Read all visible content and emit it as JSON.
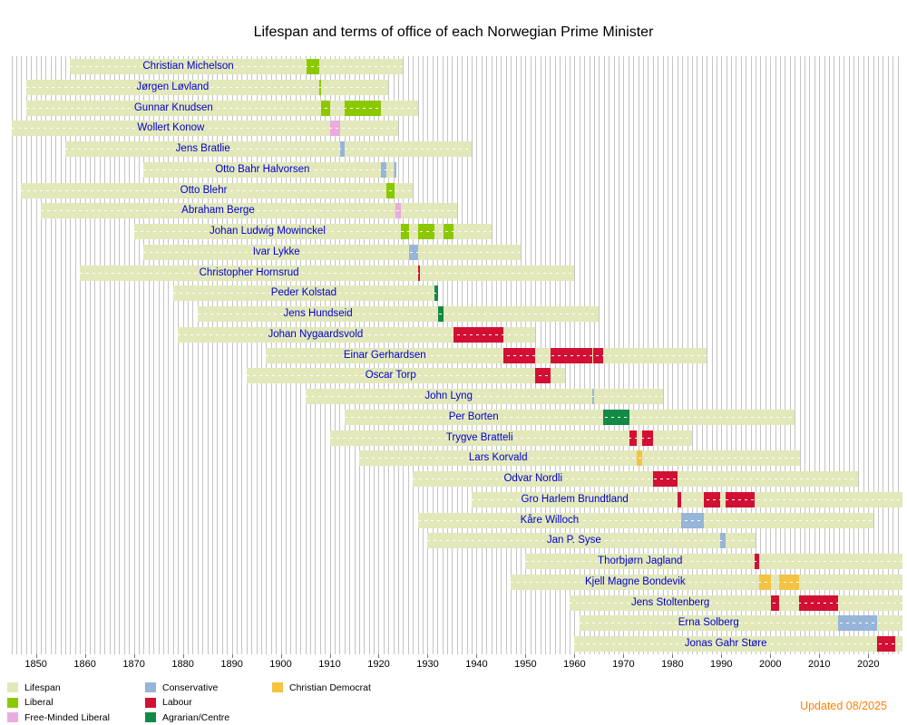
{
  "title": "Lifespan and terms of office of each Norwegian Prime Minister",
  "updated": "Updated 08/2025",
  "palette": {
    "lifespan": "#e2e8ba",
    "liberal": "#8bc800",
    "free_minded_liberal": "#edaade",
    "conservative": "#97b5d8",
    "labour": "#d21034",
    "agrarian_centre": "#128a45",
    "christian_democrat": "#f5c342",
    "grid": "#c4c4c4",
    "name_text": "#0000cd",
    "updated_text": "#ff8000"
  },
  "legend": {
    "columns": [
      [
        {
          "label": "Lifespan",
          "color": "lifespan"
        },
        {
          "label": "Liberal",
          "color": "liberal"
        },
        {
          "label": "Free-Minded Liberal",
          "color": "free_minded_liberal"
        }
      ],
      [
        {
          "label": "Conservative",
          "color": "conservative"
        },
        {
          "label": "Labour",
          "color": "labour"
        },
        {
          "label": "Agrarian/Centre",
          "color": "agrarian_centre"
        }
      ],
      [
        {
          "label": "Christian Democrat",
          "color": "christian_democrat"
        }
      ]
    ]
  },
  "chart_data": {
    "type": "gantt",
    "title": "Lifespan and terms of office of each Norwegian Prime Minister",
    "axis": {
      "start_year": 1844.5,
      "end_year": 2027,
      "tick_years": [
        1850,
        1860,
        1870,
        1880,
        1890,
        1900,
        1910,
        1920,
        1930,
        1940,
        1950,
        1960,
        1970,
        1980,
        1990,
        2000,
        2010,
        2020
      ],
      "grid": "yearly"
    },
    "legend_position": "bottom-left",
    "ministers": [
      {
        "name": "Christian Michelson",
        "birth": 1857,
        "death": 1925,
        "terms": [
          {
            "start": 1905.2,
            "end": 1907.8,
            "party": "liberal"
          }
        ]
      },
      {
        "name": "Jørgen Løvland",
        "birth": 1848,
        "death": 1922,
        "terms": [
          {
            "start": 1907.8,
            "end": 1908.2,
            "party": "liberal"
          }
        ]
      },
      {
        "name": "Gunnar Knudsen",
        "birth": 1848,
        "death": 1928,
        "terms": [
          {
            "start": 1908.2,
            "end": 1910.1,
            "party": "liberal"
          },
          {
            "start": 1913.1,
            "end": 1920.5,
            "party": "liberal"
          }
        ]
      },
      {
        "name": "Wollert Konow",
        "birth": 1845,
        "death": 1924,
        "terms": [
          {
            "start": 1910.1,
            "end": 1912.2,
            "party": "free_minded_liberal"
          }
        ]
      },
      {
        "name": "Jens Bratlie",
        "birth": 1856,
        "death": 1939,
        "terms": [
          {
            "start": 1912.2,
            "end": 1913.1,
            "party": "conservative"
          }
        ]
      },
      {
        "name": "Otto Bahr Halvorsen",
        "birth": 1872,
        "death": 1923,
        "terms": [
          {
            "start": 1920.5,
            "end": 1921.5,
            "party": "conservative"
          },
          {
            "start": 1923.2,
            "end": 1923.4,
            "party": "conservative"
          }
        ]
      },
      {
        "name": "Otto Blehr",
        "birth": 1847,
        "death": 1927,
        "terms": [
          {
            "start": 1921.5,
            "end": 1923.2,
            "party": "liberal"
          }
        ]
      },
      {
        "name": "Abraham Berge",
        "birth": 1851,
        "death": 1936,
        "terms": [
          {
            "start": 1923.4,
            "end": 1924.6,
            "party": "free_minded_liberal"
          }
        ]
      },
      {
        "name": "Johan Ludwig Mowinckel",
        "birth": 1870,
        "death": 1943,
        "terms": [
          {
            "start": 1924.6,
            "end": 1926.2,
            "party": "liberal"
          },
          {
            "start": 1928.1,
            "end": 1931.4,
            "party": "liberal"
          },
          {
            "start": 1933.2,
            "end": 1935.2,
            "party": "liberal"
          }
        ]
      },
      {
        "name": "Ivar Lykke",
        "birth": 1872,
        "death": 1949,
        "terms": [
          {
            "start": 1926.2,
            "end": 1928.05,
            "party": "conservative"
          }
        ]
      },
      {
        "name": "Christopher Hornsrud",
        "birth": 1859,
        "death": 1960,
        "terms": [
          {
            "start": 1928.05,
            "end": 1928.2,
            "party": "labour"
          }
        ]
      },
      {
        "name": "Peder Kolstad",
        "birth": 1878,
        "death": 1932,
        "terms": [
          {
            "start": 1931.4,
            "end": 1932.2,
            "party": "agrarian_centre"
          }
        ]
      },
      {
        "name": "Jens Hundseid",
        "birth": 1883,
        "death": 1965,
        "terms": [
          {
            "start": 1932.2,
            "end": 1933.2,
            "party": "agrarian_centre"
          }
        ]
      },
      {
        "name": "Johan Nygaardsvold",
        "birth": 1879,
        "death": 1952,
        "terms": [
          {
            "start": 1935.2,
            "end": 1945.5,
            "party": "labour"
          }
        ]
      },
      {
        "name": "Einar Gerhardsen",
        "birth": 1897,
        "death": 1987,
        "terms": [
          {
            "start": 1945.5,
            "end": 1951.9,
            "party": "labour"
          },
          {
            "start": 1955.1,
            "end": 1963.6,
            "party": "labour"
          },
          {
            "start": 1963.75,
            "end": 1965.8,
            "party": "labour"
          }
        ]
      },
      {
        "name": "Oscar Torp",
        "birth": 1893,
        "death": 1958,
        "terms": [
          {
            "start": 1951.9,
            "end": 1955.1,
            "party": "labour"
          }
        ]
      },
      {
        "name": "John Lyng",
        "birth": 1905,
        "death": 1978,
        "terms": [
          {
            "start": 1963.6,
            "end": 1963.75,
            "party": "conservative"
          }
        ]
      },
      {
        "name": "Per Borten",
        "birth": 1913,
        "death": 2005,
        "terms": [
          {
            "start": 1965.8,
            "end": 1971.2,
            "party": "agrarian_centre"
          }
        ]
      },
      {
        "name": "Trygve Bratteli",
        "birth": 1910,
        "death": 1984,
        "terms": [
          {
            "start": 1971.2,
            "end": 1972.8,
            "party": "labour"
          },
          {
            "start": 1973.8,
            "end": 1976.1,
            "party": "labour"
          }
        ]
      },
      {
        "name": "Lars Korvald",
        "birth": 1916,
        "death": 2006,
        "terms": [
          {
            "start": 1972.8,
            "end": 1973.8,
            "party": "christian_democrat"
          }
        ]
      },
      {
        "name": "Odvar Nordli",
        "birth": 1927,
        "death": 2018,
        "terms": [
          {
            "start": 1976.1,
            "end": 1981.1,
            "party": "labour"
          }
        ]
      },
      {
        "name": "Gro Harlem Brundtland",
        "birth": 1939,
        "death": null,
        "terms": [
          {
            "start": 1981.1,
            "end": 1981.8,
            "party": "labour"
          },
          {
            "start": 1986.4,
            "end": 1989.8,
            "party": "labour"
          },
          {
            "start": 1990.9,
            "end": 1996.8,
            "party": "labour"
          }
        ]
      },
      {
        "name": "Kåre Willoch",
        "birth": 1928,
        "death": 2021,
        "terms": [
          {
            "start": 1981.8,
            "end": 1986.4,
            "party": "conservative"
          }
        ]
      },
      {
        "name": "Jan P. Syse",
        "birth": 1930,
        "death": 1997,
        "terms": [
          {
            "start": 1989.8,
            "end": 1990.9,
            "party": "conservative"
          }
        ]
      },
      {
        "name": "Thorbjørn Jagland",
        "birth": 1950,
        "death": null,
        "terms": [
          {
            "start": 1996.8,
            "end": 1997.8,
            "party": "labour"
          }
        ]
      },
      {
        "name": "Kjell Magne Bondevik",
        "birth": 1947,
        "death": null,
        "terms": [
          {
            "start": 1997.8,
            "end": 2000.2,
            "party": "christian_democrat"
          },
          {
            "start": 2001.8,
            "end": 2005.8,
            "party": "christian_democrat"
          }
        ]
      },
      {
        "name": "Jens Stoltenberg",
        "birth": 1959,
        "death": null,
        "terms": [
          {
            "start": 2000.2,
            "end": 2001.8,
            "party": "labour"
          },
          {
            "start": 2005.8,
            "end": 2013.8,
            "party": "labour"
          }
        ]
      },
      {
        "name": "Erna Solberg",
        "birth": 1961,
        "death": null,
        "terms": [
          {
            "start": 2013.8,
            "end": 2021.8,
            "party": "conservative"
          }
        ]
      },
      {
        "name": "Jonas Gahr Støre",
        "birth": 1960,
        "death": null,
        "terms": [
          {
            "start": 2021.8,
            "end": 2025.6,
            "party": "labour"
          }
        ]
      }
    ]
  }
}
